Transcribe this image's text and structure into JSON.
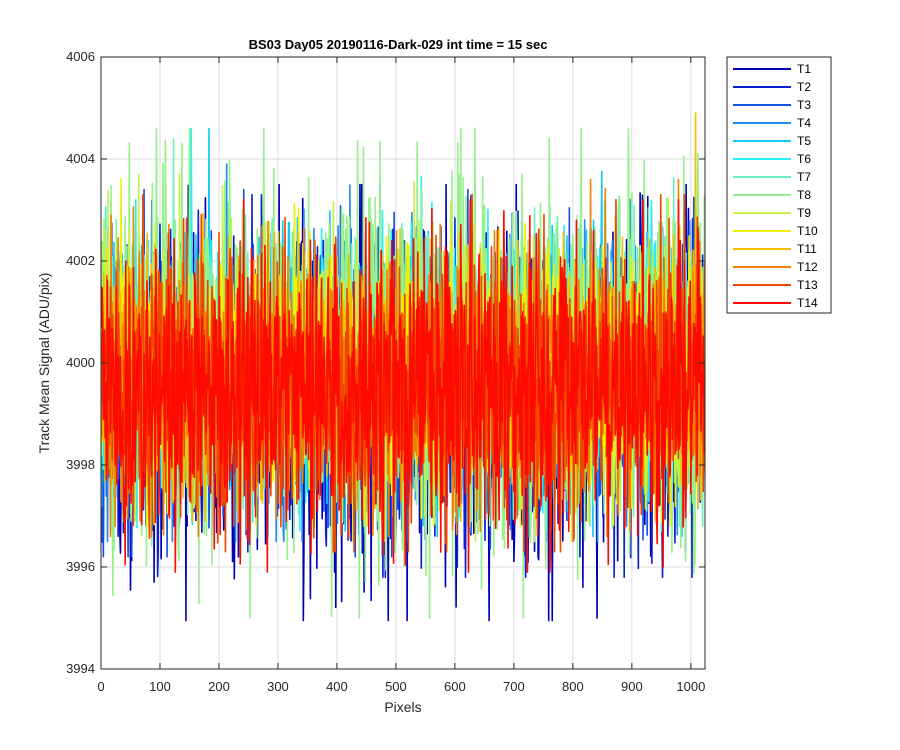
{
  "chart_data": {
    "type": "line",
    "title": "BS03 Day05 20190116-Dark-029 int time = 15 sec",
    "xlabel": "Pixels",
    "ylabel": "Track Mean Signal (ADU/pix)",
    "xlim": [
      0,
      1024
    ],
    "ylim": [
      3994,
      4006
    ],
    "xticks": [
      0,
      100,
      200,
      300,
      400,
      500,
      600,
      700,
      800,
      900,
      1000
    ],
    "yticks": [
      3994,
      3996,
      3998,
      4000,
      4002,
      4004,
      4006
    ],
    "grid": true,
    "legend_position": "outside-top-right",
    "series": [
      {
        "name": "T1",
        "color": "#0000b4",
        "mean": 3999.3,
        "min": 3994.95,
        "max": 4003.5
      },
      {
        "name": "T2",
        "color": "#0a1ed2",
        "mean": 3999.4,
        "min": 3995.8,
        "max": 4003.3
      },
      {
        "name": "T3",
        "color": "#1450e6",
        "mean": 3999.5,
        "min": 3996.2,
        "max": 4003.4
      },
      {
        "name": "T4",
        "color": "#1e8cf0",
        "mean": 3999.8,
        "min": 3996.5,
        "max": 4003.9
      },
      {
        "name": "T5",
        "color": "#14c8f0",
        "mean": 3999.9,
        "min": 3996.6,
        "max": 4004.6
      },
      {
        "name": "T6",
        "color": "#28f0f0",
        "mean": 4000.0,
        "min": 3996.7,
        "max": 4004.6
      },
      {
        "name": "T7",
        "color": "#6ef0be",
        "mean": 4000.0,
        "min": 3996.8,
        "max": 4004.4
      },
      {
        "name": "T8",
        "color": "#96f08c",
        "mean": 4000.0,
        "min": 3995.0,
        "max": 4004.6
      },
      {
        "name": "T9",
        "color": "#c8f046",
        "mean": 3999.9,
        "min": 3996.5,
        "max": 4003.7
      },
      {
        "name": "T10",
        "color": "#f0f000",
        "mean": 3999.8,
        "min": 3996.8,
        "max": 4003.6
      },
      {
        "name": "T11",
        "color": "#f0be00",
        "mean": 3999.8,
        "min": 3996.9,
        "max": 4004.9
      },
      {
        "name": "T12",
        "color": "#f08200",
        "mean": 3999.7,
        "min": 3996.6,
        "max": 4003.6
      },
      {
        "name": "T13",
        "color": "#f04600",
        "mean": 3999.6,
        "min": 3996.3,
        "max": 4003.3
      },
      {
        "name": "T14",
        "color": "#ff0a00",
        "mean": 3999.5,
        "min": 3995.9,
        "max": 4003.2
      }
    ]
  }
}
